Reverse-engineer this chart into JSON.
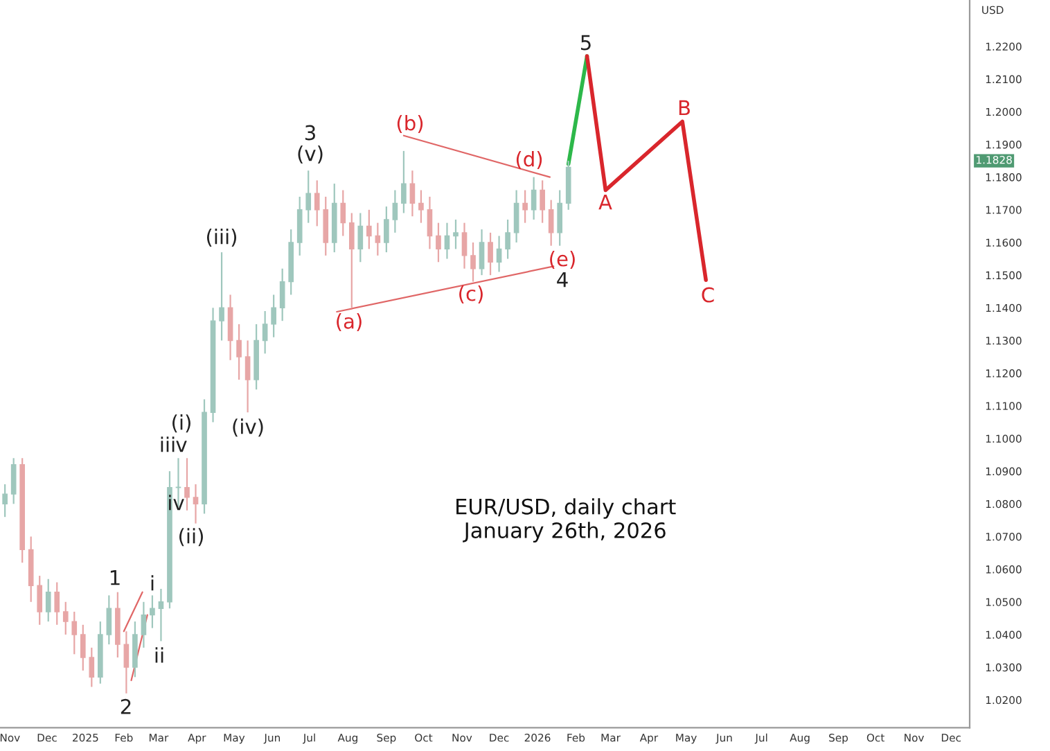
{
  "chart_data": {
    "type": "candlestick",
    "ylabel": "USD",
    "xlim": [
      "2024-10-24",
      "2026-12-16"
    ],
    "ylim": [
      1.0115,
      1.2342
    ],
    "xticks": [
      {
        "value": "2024-11-01",
        "label": "Nov"
      },
      {
        "value": "2024-12-01",
        "label": "Dec"
      },
      {
        "value": "2025-01-01",
        "label": "2025"
      },
      {
        "value": "2025-02-01",
        "label": "Feb"
      },
      {
        "value": "2025-03-01",
        "label": "Mar"
      },
      {
        "value": "2025-04-01",
        "label": "Apr"
      },
      {
        "value": "2025-05-01",
        "label": "May"
      },
      {
        "value": "2025-06-01",
        "label": "Jun"
      },
      {
        "value": "2025-07-01",
        "label": "Jul"
      },
      {
        "value": "2025-08-01",
        "label": "Aug"
      },
      {
        "value": "2025-09-01",
        "label": "Sep"
      },
      {
        "value": "2025-10-01",
        "label": "Oct"
      },
      {
        "value": "2025-11-01",
        "label": "Nov"
      },
      {
        "value": "2025-12-01",
        "label": "Dec"
      },
      {
        "value": "2026-01-01",
        "label": "2026"
      },
      {
        "value": "2026-02-01",
        "label": "Feb"
      },
      {
        "value": "2026-03-01",
        "label": "Mar"
      },
      {
        "value": "2026-04-01",
        "label": "Apr"
      },
      {
        "value": "2026-05-01",
        "label": "May"
      },
      {
        "value": "2026-06-01",
        "label": "Jun"
      },
      {
        "value": "2026-07-01",
        "label": "Jul"
      },
      {
        "value": "2026-08-01",
        "label": "Aug"
      },
      {
        "value": "2026-09-01",
        "label": "Sep"
      },
      {
        "value": "2026-10-01",
        "label": "Oct"
      },
      {
        "value": "2026-11-01",
        "label": "Nov"
      },
      {
        "value": "2026-12-01",
        "label": "Dec"
      }
    ],
    "yticks": [
      {
        "value": 1.02,
        "label": "1.0200"
      },
      {
        "value": 1.03,
        "label": "1.0300"
      },
      {
        "value": 1.04,
        "label": "1.0400"
      },
      {
        "value": 1.05,
        "label": "1.0500"
      },
      {
        "value": 1.06,
        "label": "1.0600"
      },
      {
        "value": 1.07,
        "label": "1.0700"
      },
      {
        "value": 1.08,
        "label": "1.0800"
      },
      {
        "value": 1.09,
        "label": "1.0900"
      },
      {
        "value": 1.1,
        "label": "1.1000"
      },
      {
        "value": 1.11,
        "label": "1.1100"
      },
      {
        "value": 1.12,
        "label": "1.1200"
      },
      {
        "value": 1.13,
        "label": "1.1300"
      },
      {
        "value": 1.14,
        "label": "1.1400"
      },
      {
        "value": 1.15,
        "label": "1.1500"
      },
      {
        "value": 1.16,
        "label": "1.1600"
      },
      {
        "value": 1.17,
        "label": "1.1700"
      },
      {
        "value": 1.18,
        "label": "1.1800"
      },
      {
        "value": 1.19,
        "label": "1.1900"
      },
      {
        "value": 1.2,
        "label": "1.2000"
      },
      {
        "value": 1.21,
        "label": "1.2100"
      },
      {
        "value": 1.22,
        "label": "1.2200"
      }
    ],
    "grid": false,
    "legend": false,
    "series": [
      {
        "colors": [
          "#9fc7bd",
          "#9fc7bd",
          "#e7a6a6",
          "#e7a6a6",
          "#e7a6a6",
          "#9fc7bd",
          "#e7a6a6",
          "#e7a6a6",
          "#e7a6a6",
          "#e7a6a6",
          "#e7a6a6",
          "#9fc7bd",
          "#9fc7bd",
          "#e7a6a6",
          "#e7a6a6",
          "#9fc7bd",
          "#9fc7bd",
          "#9fc7bd",
          "#9fc7bd",
          "#9fc7bd",
          "#9fc7bd",
          "#e7a6a6",
          "#e7a6a6",
          "#9fc7bd",
          "#9fc7bd",
          "#9fc7bd",
          "#e7a6a6",
          "#e7a6a6",
          "#e7a6a6",
          "#9fc7bd",
          "#9fc7bd",
          "#9fc7bd",
          "#9fc7bd",
          "#9fc7bd",
          "#9fc7bd",
          "#9fc7bd",
          "#e7a6a6",
          "#e7a6a6",
          "#9fc7bd",
          "#e7a6a6",
          "#e7a6a6",
          "#9fc7bd",
          "#e7a6a6",
          "#e7a6a6",
          "#9fc7bd",
          "#9fc7bd",
          "#9fc7bd",
          "#e7a6a6",
          "#e7a6a6",
          "#e7a6a6",
          "#e7a6a6",
          "#9fc7bd",
          "#9fc7bd",
          "#e7a6a6",
          "#e7a6a6",
          "#9fc7bd",
          "#e7a6a6",
          "#9fc7bd",
          "#9fc7bd",
          "#9fc7bd",
          "#e7a6a6",
          "#9fc7bd",
          "#e7a6a6",
          "#e7a6a6",
          "#9fc7bd",
          "#9fc7bd"
        ],
        "x": [
          "2024-10-28",
          "2024-11-04",
          "2024-11-11",
          "2024-11-18",
          "2024-11-25",
          "2024-12-02",
          "2024-12-09",
          "2024-12-16",
          "2024-12-23",
          "2024-12-30",
          "2025-01-06",
          "2025-01-13",
          "2025-01-20",
          "2025-01-27",
          "2025-02-03",
          "2025-02-10",
          "2025-02-17",
          "2025-02-24",
          "2025-03-03",
          "2025-03-10",
          "2025-03-17",
          "2025-03-24",
          "2025-03-31",
          "2025-04-07",
          "2025-04-14",
          "2025-04-21",
          "2025-04-28",
          "2025-05-05",
          "2025-05-12",
          "2025-05-19",
          "2025-05-26",
          "2025-06-02",
          "2025-06-09",
          "2025-06-16",
          "2025-06-23",
          "2025-06-30",
          "2025-07-07",
          "2025-07-14",
          "2025-07-21",
          "2025-07-28",
          "2025-08-04",
          "2025-08-11",
          "2025-08-18",
          "2025-08-25",
          "2025-09-01",
          "2025-09-08",
          "2025-09-15",
          "2025-09-22",
          "2025-09-29",
          "2025-10-06",
          "2025-10-13",
          "2025-10-20",
          "2025-10-27",
          "2025-11-03",
          "2025-11-10",
          "2025-11-17",
          "2025-11-24",
          "2025-12-01",
          "2025-12-08",
          "2025-12-15",
          "2025-12-22",
          "2025-12-29",
          "2026-01-05",
          "2026-01-12",
          "2026-01-19",
          "2026-01-26"
        ],
        "ohlc": [
          [
            1.08,
            1.086,
            1.076,
            1.083
          ],
          [
            1.083,
            1.094,
            1.08,
            1.092
          ],
          [
            1.092,
            1.094,
            1.062,
            1.066
          ],
          [
            1.066,
            1.07,
            1.05,
            1.055
          ],
          [
            1.055,
            1.058,
            1.043,
            1.047
          ],
          [
            1.047,
            1.057,
            1.044,
            1.053
          ],
          [
            1.053,
            1.056,
            1.043,
            1.047
          ],
          [
            1.047,
            1.05,
            1.04,
            1.044
          ],
          [
            1.044,
            1.047,
            1.034,
            1.04
          ],
          [
            1.04,
            1.043,
            1.029,
            1.033
          ],
          [
            1.033,
            1.036,
            1.024,
            1.027
          ],
          [
            1.027,
            1.044,
            1.025,
            1.04
          ],
          [
            1.04,
            1.052,
            1.037,
            1.048
          ],
          [
            1.048,
            1.053,
            1.033,
            1.037
          ],
          [
            1.037,
            1.041,
            1.022,
            1.03
          ],
          [
            1.03,
            1.044,
            1.027,
            1.04
          ],
          [
            1.04,
            1.05,
            1.036,
            1.046
          ],
          [
            1.046,
            1.052,
            1.042,
            1.048
          ],
          [
            1.048,
            1.054,
            1.038,
            1.05
          ],
          [
            1.05,
            1.09,
            1.048,
            1.085
          ],
          [
            1.085,
            1.094,
            1.079,
            1.085
          ],
          [
            1.085,
            1.094,
            1.078,
            1.082
          ],
          [
            1.082,
            1.086,
            1.074,
            1.08
          ],
          [
            1.08,
            1.112,
            1.077,
            1.108
          ],
          [
            1.108,
            1.14,
            1.105,
            1.136
          ],
          [
            1.136,
            1.157,
            1.13,
            1.14
          ],
          [
            1.14,
            1.144,
            1.124,
            1.13
          ],
          [
            1.13,
            1.135,
            1.118,
            1.125
          ],
          [
            1.125,
            1.13,
            1.108,
            1.118
          ],
          [
            1.118,
            1.135,
            1.115,
            1.13
          ],
          [
            1.13,
            1.139,
            1.126,
            1.135
          ],
          [
            1.135,
            1.144,
            1.131,
            1.14
          ],
          [
            1.14,
            1.152,
            1.136,
            1.148
          ],
          [
            1.148,
            1.164,
            1.144,
            1.16
          ],
          [
            1.16,
            1.174,
            1.156,
            1.17
          ],
          [
            1.17,
            1.182,
            1.166,
            1.175
          ],
          [
            1.175,
            1.179,
            1.165,
            1.17
          ],
          [
            1.17,
            1.174,
            1.156,
            1.16
          ],
          [
            1.16,
            1.178,
            1.157,
            1.172
          ],
          [
            1.172,
            1.176,
            1.162,
            1.166
          ],
          [
            1.166,
            1.169,
            1.14,
            1.158
          ],
          [
            1.158,
            1.169,
            1.154,
            1.165
          ],
          [
            1.165,
            1.17,
            1.158,
            1.162
          ],
          [
            1.162,
            1.166,
            1.156,
            1.16
          ],
          [
            1.16,
            1.171,
            1.157,
            1.167
          ],
          [
            1.167,
            1.176,
            1.163,
            1.172
          ],
          [
            1.172,
            1.188,
            1.169,
            1.178
          ],
          [
            1.178,
            1.182,
            1.168,
            1.172
          ],
          [
            1.172,
            1.176,
            1.166,
            1.17
          ],
          [
            1.17,
            1.174,
            1.158,
            1.162
          ],
          [
            1.162,
            1.166,
            1.154,
            1.158
          ],
          [
            1.158,
            1.166,
            1.155,
            1.162
          ],
          [
            1.162,
            1.167,
            1.158,
            1.163
          ],
          [
            1.163,
            1.166,
            1.152,
            1.156
          ],
          [
            1.156,
            1.16,
            1.148,
            1.152
          ],
          [
            1.152,
            1.164,
            1.15,
            1.16
          ],
          [
            1.16,
            1.163,
            1.15,
            1.154
          ],
          [
            1.154,
            1.162,
            1.151,
            1.158
          ],
          [
            1.158,
            1.167,
            1.155,
            1.163
          ],
          [
            1.163,
            1.176,
            1.16,
            1.172
          ],
          [
            1.172,
            1.176,
            1.166,
            1.17
          ],
          [
            1.17,
            1.18,
            1.167,
            1.176
          ],
          [
            1.176,
            1.179,
            1.166,
            1.17
          ],
          [
            1.17,
            1.173,
            1.159,
            1.163
          ],
          [
            1.163,
            1.176,
            1.159,
            1.172
          ],
          [
            1.172,
            1.185,
            1.17,
            1.183
          ]
        ]
      },
      {
        "type": "line",
        "color": "#e06666",
        "x": [
          "2025-02-01",
          "2025-02-16"
        ],
        "values": [
          1.041,
          1.053
        ]
      },
      {
        "type": "line",
        "color": "#e06666",
        "x": [
          "2025-02-07",
          "2025-02-20"
        ],
        "values": [
          1.026,
          1.046
        ]
      },
      {
        "type": "line",
        "color": "#e06666",
        "x": [
          "2025-09-15",
          "2026-01-11"
        ],
        "values": [
          1.1927,
          1.18
        ]
      },
      {
        "type": "line",
        "color": "#e06666",
        "x": [
          "2025-07-23",
          "2026-01-14"
        ],
        "values": [
          1.1388,
          1.1527
        ]
      },
      {
        "type": "line",
        "color": "#2db84a",
        "x": [
          "2026-01-26",
          "2026-02-10"
        ],
        "values": [
          1.184,
          1.217
        ]
      },
      {
        "type": "line",
        "color": "#d9262c",
        "x": [
          "2026-02-10",
          "2026-02-25",
          "2026-04-28",
          "2026-05-17"
        ],
        "values": [
          1.217,
          1.176,
          1.197,
          1.1485
        ]
      }
    ],
    "annotations": [
      "1",
      "2",
      "i",
      "ii",
      "iii",
      "iv",
      "v",
      "(i)",
      "(ii)",
      "(iii)",
      "(iv)",
      "3",
      "(v)",
      "(a)",
      "(b)",
      "(c)",
      "(d)",
      "(e)",
      "4",
      "5",
      "A",
      "B",
      "C",
      "1.1828",
      "EUR/USD, daily chart\nJanuary 26th, 2026"
    ]
  }
}
